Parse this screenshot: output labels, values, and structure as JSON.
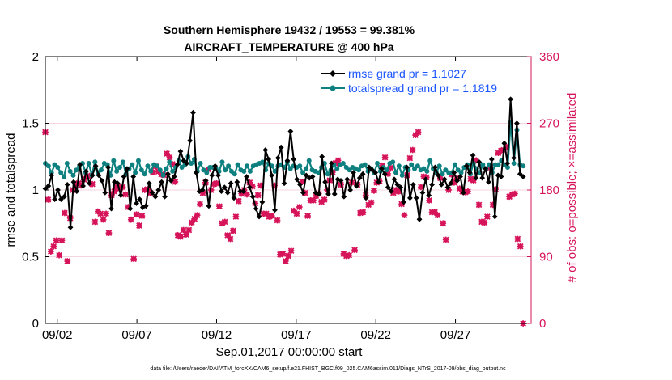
{
  "chart_data": {
    "type": "line",
    "title": "Southern Hemisphere 19432 / 19553 = 99.381%",
    "subtitle": "AIRCRAFT_TEMPERATURE @ 400 hPa",
    "xlabel": "Sep.01,2017 00:00:00 start",
    "ylabel": "rmse and totalspread",
    "y2label": "# of obs: o=possible; ×=assimilated",
    "xlim": [
      0,
      30.5
    ],
    "ylim": [
      0,
      2
    ],
    "y2lim": [
      0,
      360
    ],
    "x_ticks": [
      0.75,
      5.75,
      10.75,
      15.75,
      20.75,
      25.75
    ],
    "x_tick_labels": [
      "09/02",
      "09/07",
      "09/12",
      "09/17",
      "09/22",
      "09/27"
    ],
    "y_ticks": [
      0,
      0.5,
      1,
      1.5,
      2
    ],
    "y_tick_labels": [
      "0",
      "0.5",
      "1",
      "1.5",
      "2"
    ],
    "y2_ticks": [
      0,
      90,
      180,
      270,
      360
    ],
    "y2_tick_labels": [
      "0",
      "90",
      "180",
      "270",
      "360"
    ],
    "footer": "data file: /Users/raeder/DAI/ATM_forcXX/CAM6_setup/f.e21.FHIST_BGC.f09_025.CAM6assim.011/Diags_NTrS_2017-09/obs_diag_output.nc",
    "colors": {
      "rmse": "#000000",
      "spread": "#0f8080",
      "obs": "#d6145a",
      "legend_text": "#1a55ff",
      "axis_right": "#d6145a"
    },
    "series": [
      {
        "name": "rmse grand pr = 1.1027",
        "color": "#000000",
        "values": [
          1.01,
          1.03,
          1.11,
          0.93,
          1.0,
          0.93,
          0.95,
          1.04,
          0.72,
          1.06,
          0.99,
          1.19,
          1.03,
          1.14,
          1.05,
          1.11,
          1.18,
          1.11,
          1.07,
          0.98,
          1.17,
          0.86,
          1.06,
          1.05,
          0.96,
          1.1,
          1.16,
          0.86,
          1.1,
          0.9,
          0.93,
          0.87,
          0.88,
          1.05,
          0.98,
          0.95,
          1.0,
          1.06,
          0.95,
          1.12,
          1.07,
          1.1,
          1.19,
          1.29,
          1.22,
          1.2,
          1.37,
          1.58,
          1.13,
          0.99,
          1.0,
          1.07,
          0.88,
          1.11,
          1.18,
          1.11,
          0.99,
          1.02,
          0.98,
          1.05,
          0.94,
          1.06,
          0.99,
          0.99,
          1.1,
          1.02,
          0.95,
          0.86,
          0.8,
          0.91,
          1.3,
          1.23,
          1.11,
          0.85,
          1.24,
          1.32,
          1.05,
          1.22,
          1.44,
          1.23,
          1.08,
          1.04,
          0.98,
          1.11,
          1.09,
          1.1,
          0.98,
          0.97,
          1.25,
          1.06,
          0.97,
          1.2,
          0.97,
          1.08,
          1.07,
          0.95,
          1.08,
          1.0,
          1.13,
          1.03,
          1.09,
          1.12,
          0.94,
          1.17,
          1.15,
          1.13,
          1.06,
          1.16,
          1.12,
          1.02,
          0.99,
          1.08,
          1.04,
          1.02,
          0.91,
          1.17,
          0.94,
          1.04,
          0.94,
          0.78,
          0.98,
          1.08,
          0.96,
          1.04,
          1.17,
          1.11,
          1.04,
          1.08,
          1.02,
          1.05,
          1.13,
          1.07,
          1.1,
          0.98,
          1.18,
          1.13,
          1.26,
          1.09,
          1.21,
          1.09,
          1.16,
          1.06,
          1.23,
          0.8,
          1.11,
          1.1,
          1.35,
          1.2,
          1.68,
          1.24,
          1.5,
          1.12,
          1.1
        ]
      },
      {
        "name": "totalspread grand pr = 1.1819",
        "color": "#0f8080",
        "values": [
          1.2,
          1.18,
          1.13,
          1.19,
          1.17,
          1.13,
          1.1,
          1.2,
          1.14,
          1.11,
          1.15,
          1.18,
          1.2,
          1.13,
          1.2,
          1.11,
          1.21,
          1.13,
          1.15,
          1.2,
          1.19,
          1.11,
          1.22,
          1.14,
          1.17,
          1.21,
          1.12,
          1.16,
          1.19,
          1.13,
          1.22,
          1.15,
          1.12,
          1.18,
          1.14,
          1.19,
          1.18,
          1.15,
          1.11,
          1.16,
          1.21,
          1.14,
          1.17,
          1.22,
          1.17,
          1.19,
          1.25,
          1.2,
          1.23,
          1.14,
          1.2,
          1.15,
          1.13,
          1.17,
          1.17,
          1.16,
          1.14,
          1.21,
          1.15,
          1.18,
          1.14,
          1.12,
          1.19,
          1.15,
          1.14,
          1.18,
          1.14,
          1.18,
          1.19,
          1.2,
          1.21,
          1.15,
          1.2,
          1.18,
          1.14,
          1.18,
          1.19,
          1.17,
          1.21,
          1.16,
          1.18,
          1.17,
          1.18,
          1.13,
          1.16,
          1.22,
          1.15,
          1.14,
          1.13,
          1.17,
          1.2,
          1.12,
          1.15,
          1.19,
          1.16,
          1.19,
          1.2,
          1.17,
          1.15,
          1.17,
          1.16,
          1.15,
          1.18,
          1.19,
          1.14,
          1.16,
          1.13,
          1.2,
          1.14,
          1.17,
          1.15,
          1.2,
          1.21,
          1.13,
          1.18,
          1.11,
          1.17,
          1.15,
          1.19,
          1.16,
          1.18,
          1.15,
          1.16,
          1.14,
          1.22,
          1.16,
          1.13,
          1.18,
          1.12,
          1.15,
          1.13,
          1.13,
          1.19,
          1.15,
          1.13,
          1.17,
          1.19,
          1.12,
          1.2,
          1.16,
          1.13,
          1.19,
          1.16,
          1.19,
          1.13,
          1.19,
          1.19,
          1.22,
          1.19,
          1.17,
          1.51,
          1.2,
          1.45,
          1.19,
          1.18
        ]
      }
    ],
    "obs_possible": [
      258,
      167,
      97,
      104,
      112,
      92,
      112,
      149,
      84,
      142,
      180,
      186,
      189,
      186,
      194,
      198,
      199,
      188,
      137,
      151,
      148,
      140,
      148,
      122,
      173,
      178,
      184,
      182,
      184,
      174,
      157,
      140,
      87,
      147,
      132,
      145,
      180,
      181,
      176,
      204,
      212,
      205,
      201,
      200,
      229,
      224,
      215,
      191,
      119,
      117,
      126,
      120,
      126,
      136,
      141,
      146,
      161,
      176,
      190,
      208,
      180,
      188,
      189,
      158,
      135,
      137,
      119,
      114,
      125,
      144,
      165,
      175,
      180,
      174,
      190,
      185,
      162,
      173,
      186,
      148,
      148,
      144,
      145,
      186,
      139,
      93,
      94,
      84,
      91,
      98,
      152,
      148,
      157,
      191,
      176,
      145,
      166,
      166,
      172,
      175,
      164,
      167,
      180,
      193,
      204,
      216,
      220,
      187,
      94,
      91,
      92,
      190,
      99,
      187,
      149,
      150,
      173,
      160,
      163,
      179,
      190,
      192,
      213,
      224,
      202,
      210,
      176,
      180,
      178,
      161,
      146,
      200,
      223,
      234,
      254,
      258,
      184,
      198,
      197,
      166,
      150,
      150,
      146,
      196,
      135,
      113,
      180,
      201,
      190,
      196,
      182,
      178,
      177,
      178,
      195,
      193,
      220,
      160,
      137,
      136,
      144,
      210,
      160,
      181,
      230,
      233,
      234,
      238,
      171,
      174,
      175,
      114,
      104,
      0
    ],
    "obs_assimilated": [
      258,
      167,
      97,
      104,
      112,
      92,
      112,
      149,
      84,
      142,
      180,
      186,
      189,
      186,
      194,
      198,
      199,
      188,
      137,
      151,
      148,
      140,
      148,
      122,
      173,
      178,
      184,
      182,
      184,
      174,
      157,
      140,
      87,
      147,
      132,
      145,
      180,
      181,
      176,
      204,
      212,
      205,
      201,
      200,
      229,
      224,
      215,
      191,
      119,
      117,
      126,
      120,
      126,
      136,
      141,
      146,
      161,
      176,
      190,
      208,
      180,
      188,
      189,
      158,
      135,
      137,
      119,
      114,
      125,
      144,
      165,
      175,
      180,
      174,
      190,
      185,
      162,
      173,
      186,
      148,
      148,
      144,
      145,
      186,
      139,
      93,
      94,
      84,
      91,
      98,
      152,
      148,
      157,
      191,
      176,
      145,
      166,
      166,
      172,
      175,
      164,
      167,
      180,
      193,
      204,
      216,
      220,
      187,
      94,
      91,
      92,
      190,
      99,
      187,
      149,
      150,
      173,
      160,
      163,
      179,
      190,
      192,
      213,
      224,
      202,
      210,
      176,
      180,
      178,
      161,
      146,
      200,
      223,
      234,
      254,
      258,
      184,
      198,
      197,
      166,
      150,
      150,
      146,
      196,
      135,
      113,
      180,
      201,
      190,
      196,
      182,
      178,
      177,
      178,
      195,
      193,
      220,
      160,
      137,
      136,
      144,
      210,
      160,
      181,
      230,
      233,
      234,
      238,
      171,
      174,
      175,
      114,
      104,
      0
    ]
  }
}
